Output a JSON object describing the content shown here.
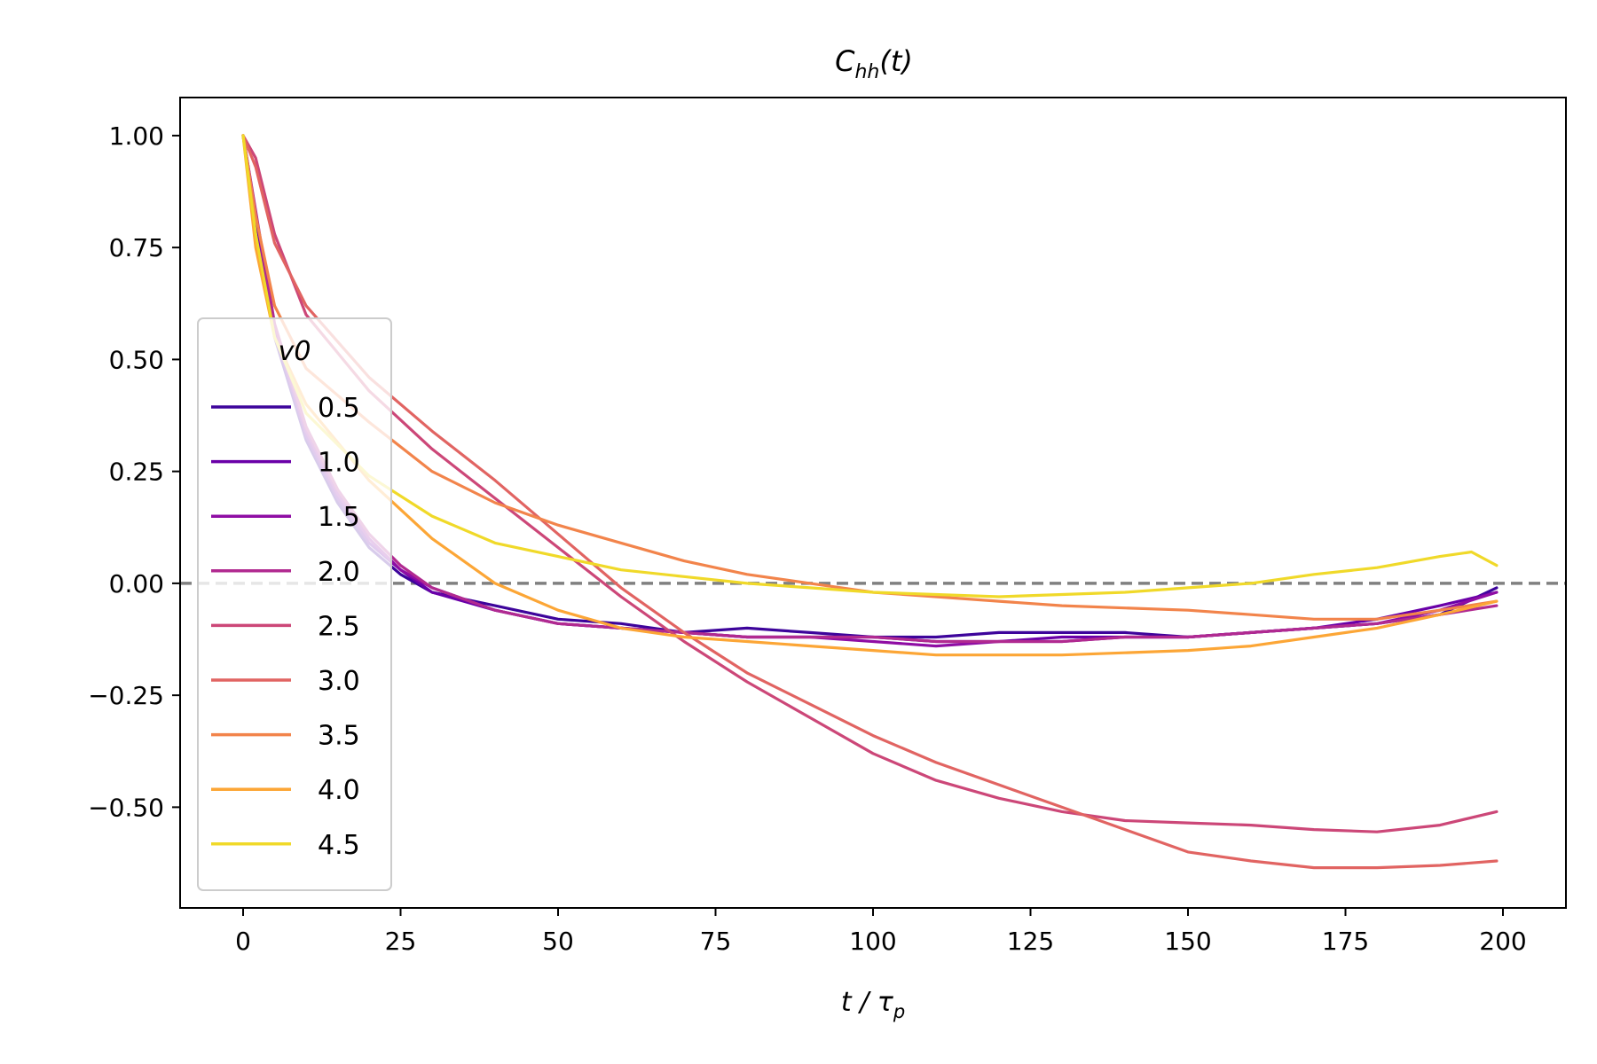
{
  "chart_data": {
    "type": "line",
    "title": "C_hh(t)",
    "title_parts": {
      "main": "C",
      "sub": "hh",
      "rest": "(t)"
    },
    "xlabel": "t / τ_p",
    "xlabel_parts": {
      "pre": "t / τ",
      "sub": "p"
    },
    "ylabel": "",
    "xlim": [
      -10,
      210
    ],
    "ylim": [
      -0.725,
      1.085
    ],
    "xticks": [
      0,
      25,
      50,
      75,
      100,
      125,
      150,
      175,
      200
    ],
    "xtick_labels": [
      "0",
      "25",
      "50",
      "75",
      "100",
      "125",
      "150",
      "175",
      "200"
    ],
    "yticks": [
      1.0,
      0.75,
      0.5,
      0.25,
      0.0,
      -0.25,
      -0.5
    ],
    "ytick_labels": [
      "1.00",
      "0.75",
      "0.50",
      "0.25",
      "0.00",
      "−0.25",
      "−0.50"
    ],
    "reference_line": {
      "y": 0.0,
      "style": "dashed",
      "color": "#808080"
    },
    "legend": {
      "title": "v0",
      "placement": "center-left"
    },
    "series": [
      {
        "name": "0.5",
        "color": "#3d049b",
        "x": [
          0,
          5,
          10,
          15,
          20,
          25,
          30,
          40,
          50,
          60,
          70,
          80,
          90,
          100,
          110,
          120,
          130,
          140,
          150,
          160,
          170,
          180,
          190,
          199
        ],
        "y": [
          1.0,
          0.55,
          0.32,
          0.18,
          0.08,
          0.02,
          -0.02,
          -0.05,
          -0.08,
          -0.09,
          -0.11,
          -0.1,
          -0.11,
          -0.12,
          -0.12,
          -0.11,
          -0.11,
          -0.11,
          -0.12,
          -0.11,
          -0.1,
          -0.09,
          -0.07,
          -0.01
        ]
      },
      {
        "name": "1.0",
        "color": "#6a00a8",
        "x": [
          0,
          5,
          10,
          15,
          20,
          25,
          30,
          40,
          50,
          60,
          70,
          80,
          90,
          100,
          110,
          120,
          130,
          140,
          150,
          160,
          170,
          180,
          190,
          199
        ],
        "y": [
          1.0,
          0.56,
          0.33,
          0.19,
          0.09,
          0.03,
          -0.02,
          -0.06,
          -0.09,
          -0.1,
          -0.11,
          -0.12,
          -0.12,
          -0.12,
          -0.13,
          -0.13,
          -0.12,
          -0.12,
          -0.12,
          -0.11,
          -0.1,
          -0.08,
          -0.05,
          -0.02
        ]
      },
      {
        "name": "1.5",
        "color": "#8f0da4",
        "x": [
          0,
          5,
          10,
          15,
          20,
          25,
          30,
          40,
          50,
          60,
          70,
          80,
          90,
          100,
          110,
          120,
          130,
          140,
          150,
          160,
          170,
          180,
          190,
          199
        ],
        "y": [
          1.0,
          0.57,
          0.34,
          0.2,
          0.1,
          0.03,
          -0.01,
          -0.06,
          -0.09,
          -0.1,
          -0.11,
          -0.12,
          -0.12,
          -0.13,
          -0.14,
          -0.13,
          -0.13,
          -0.12,
          -0.12,
          -0.11,
          -0.1,
          -0.09,
          -0.06,
          -0.02
        ]
      },
      {
        "name": "2.0",
        "color": "#b12a90",
        "x": [
          0,
          5,
          10,
          15,
          20,
          25,
          30,
          40,
          50,
          60,
          70,
          80,
          90,
          100,
          110,
          120,
          130,
          140,
          150,
          160,
          170,
          180,
          190,
          199
        ],
        "y": [
          1.0,
          0.58,
          0.35,
          0.21,
          0.11,
          0.04,
          -0.01,
          -0.06,
          -0.09,
          -0.1,
          -0.11,
          -0.12,
          -0.12,
          -0.12,
          -0.13,
          -0.13,
          -0.13,
          -0.12,
          -0.12,
          -0.11,
          -0.1,
          -0.09,
          -0.07,
          -0.05
        ]
      },
      {
        "name": "2.5",
        "color": "#cc4778",
        "x": [
          0,
          2,
          5,
          10,
          20,
          30,
          40,
          50,
          60,
          70,
          80,
          90,
          100,
          110,
          120,
          130,
          140,
          150,
          160,
          170,
          180,
          190,
          199
        ],
        "y": [
          1.0,
          0.95,
          0.78,
          0.6,
          0.43,
          0.3,
          0.19,
          0.08,
          -0.03,
          -0.13,
          -0.22,
          -0.3,
          -0.38,
          -0.44,
          -0.48,
          -0.51,
          -0.53,
          -0.535,
          -0.54,
          -0.55,
          -0.555,
          -0.54,
          -0.51
        ]
      },
      {
        "name": "3.0",
        "color": "#e16462",
        "x": [
          0,
          2,
          5,
          10,
          20,
          30,
          40,
          50,
          60,
          70,
          80,
          90,
          100,
          110,
          120,
          130,
          140,
          150,
          160,
          170,
          180,
          190,
          199
        ],
        "y": [
          1.0,
          0.93,
          0.76,
          0.62,
          0.46,
          0.34,
          0.23,
          0.11,
          -0.01,
          -0.11,
          -0.2,
          -0.27,
          -0.34,
          -0.4,
          -0.45,
          -0.5,
          -0.55,
          -0.6,
          -0.62,
          -0.635,
          -0.635,
          -0.63,
          -0.62
        ]
      },
      {
        "name": "3.5",
        "color": "#f2844b",
        "x": [
          0,
          2,
          5,
          10,
          20,
          30,
          40,
          50,
          60,
          70,
          80,
          90,
          100,
          110,
          120,
          130,
          140,
          150,
          160,
          170,
          180,
          190,
          199
        ],
        "y": [
          1.0,
          0.82,
          0.62,
          0.48,
          0.36,
          0.25,
          0.18,
          0.13,
          0.09,
          0.05,
          0.02,
          0.0,
          -0.02,
          -0.03,
          -0.04,
          -0.05,
          -0.055,
          -0.06,
          -0.07,
          -0.08,
          -0.08,
          -0.06,
          -0.04
        ]
      },
      {
        "name": "4.0",
        "color": "#fca636",
        "x": [
          0,
          2,
          5,
          10,
          20,
          30,
          40,
          50,
          60,
          70,
          80,
          90,
          100,
          110,
          120,
          130,
          140,
          150,
          160,
          170,
          180,
          190,
          199
        ],
        "y": [
          1.0,
          0.75,
          0.55,
          0.4,
          0.23,
          0.1,
          0.0,
          -0.06,
          -0.1,
          -0.12,
          -0.13,
          -0.14,
          -0.15,
          -0.16,
          -0.16,
          -0.16,
          -0.155,
          -0.15,
          -0.14,
          -0.12,
          -0.1,
          -0.07,
          -0.04
        ]
      },
      {
        "name": "4.5",
        "color": "#f0d929",
        "x": [
          0,
          2,
          5,
          10,
          20,
          30,
          40,
          50,
          60,
          70,
          80,
          90,
          100,
          110,
          120,
          130,
          140,
          150,
          160,
          170,
          180,
          190,
          195,
          199
        ],
        "y": [
          1.0,
          0.78,
          0.55,
          0.38,
          0.24,
          0.15,
          0.09,
          0.06,
          0.03,
          0.015,
          0.0,
          -0.01,
          -0.02,
          -0.025,
          -0.03,
          -0.025,
          -0.02,
          -0.01,
          0.0,
          0.02,
          0.035,
          0.06,
          0.07,
          0.04
        ]
      }
    ]
  }
}
